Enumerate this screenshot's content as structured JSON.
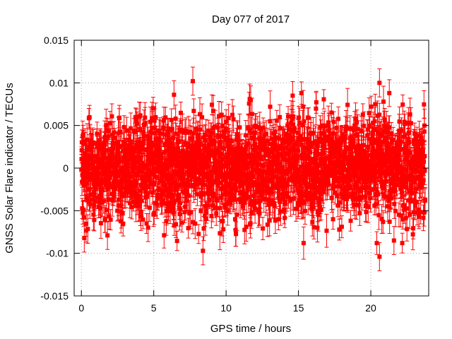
{
  "chart_data": {
    "type": "scatter",
    "title": "Day 077 of 2017",
    "xlabel": "GPS time / hours",
    "ylabel": "GNSS Solar Flare indicator / TECUs",
    "xlim": [
      -0.5,
      24
    ],
    "ylim": [
      -0.015,
      0.015
    ],
    "xticks": [
      0,
      5,
      10,
      15,
      20
    ],
    "xtick_labels": [
      "0",
      "5",
      "10",
      "15",
      "20"
    ],
    "yticks": [
      -0.015,
      -0.01,
      -0.005,
      0,
      0.005,
      0.01,
      0.015
    ],
    "ytick_labels": [
      "-0.015",
      "-0.01",
      "-0.005",
      "0",
      "0.005",
      "0.01",
      "0.015"
    ],
    "grid": true,
    "series": [
      {
        "name": "solar flare indicator",
        "color": "#ff0000",
        "marker": "square",
        "error_bars": true,
        "x_range": [
          0,
          23.75
        ],
        "typical_spread": 0.0035,
        "typical_error": 0.0015,
        "highlighted_points": [
          {
            "x": 7.7,
            "y": 0.0102
          },
          {
            "x": 20.6,
            "y": 0.01
          },
          {
            "x": 20.6,
            "y": -0.0104
          },
          {
            "x": 8.4,
            "y": -0.0097
          },
          {
            "x": 0.2,
            "y": -0.0082
          },
          {
            "x": 1.8,
            "y": -0.0079
          },
          {
            "x": 21.6,
            "y": -0.0085
          },
          {
            "x": 14.6,
            "y": 0.0085
          },
          {
            "x": 11.7,
            "y": 0.008
          },
          {
            "x": 6.4,
            "y": 0.0086
          }
        ]
      }
    ]
  }
}
